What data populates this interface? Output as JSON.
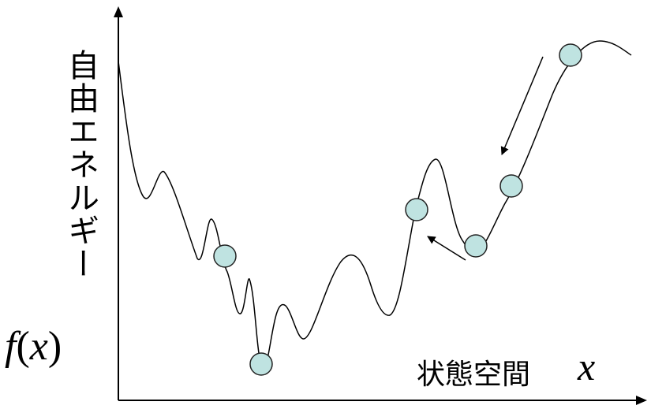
{
  "labels": {
    "y_axis": "自由エネルギー",
    "function_name": "f",
    "function_open": "(",
    "function_var": "x",
    "function_close": ")",
    "x_axis": "状態空間",
    "x_var": "x"
  },
  "colors": {
    "ball_fill": "#bfe3e1",
    "ball_stroke": "#222222",
    "curve": "#000000"
  },
  "balls": [
    "ball-1",
    "ball-2",
    "ball-3",
    "ball-4",
    "ball-5",
    "ball-6"
  ],
  "arrows": [
    "arrow-down-right",
    "arrow-up-left"
  ]
}
